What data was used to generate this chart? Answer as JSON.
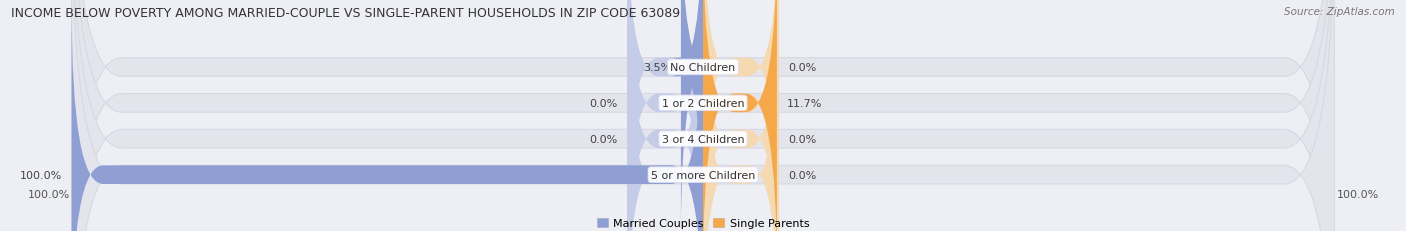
{
  "title": "INCOME BELOW POVERTY AMONG MARRIED-COUPLE VS SINGLE-PARENT HOUSEHOLDS IN ZIP CODE 63089",
  "source": "Source: ZipAtlas.com",
  "categories": [
    "No Children",
    "1 or 2 Children",
    "3 or 4 Children",
    "5 or more Children"
  ],
  "married_values": [
    3.5,
    0.0,
    0.0,
    100.0
  ],
  "single_values": [
    0.0,
    11.7,
    0.0,
    0.0
  ],
  "married_color_bar": "#8f9fd4",
  "single_color_bar": "#f5a84a",
  "married_color_placeholder": "#c5cce8",
  "single_color_placeholder": "#f5d9b0",
  "bg_color": "#eeeff5",
  "bar_bg_color": "#e4e4ec",
  "bar_bg_edge": "#d8d8e4",
  "x_min": -100,
  "x_max": 100,
  "min_bar_width": 12,
  "legend_married": "Married Couples",
  "legend_single": "Single Parents",
  "title_fontsize": 9.0,
  "source_fontsize": 7.5,
  "label_fontsize": 8.0,
  "cat_fontsize": 8.0,
  "bar_height": 0.52,
  "axis_label_left": "100.0%",
  "axis_label_right": "100.0%"
}
